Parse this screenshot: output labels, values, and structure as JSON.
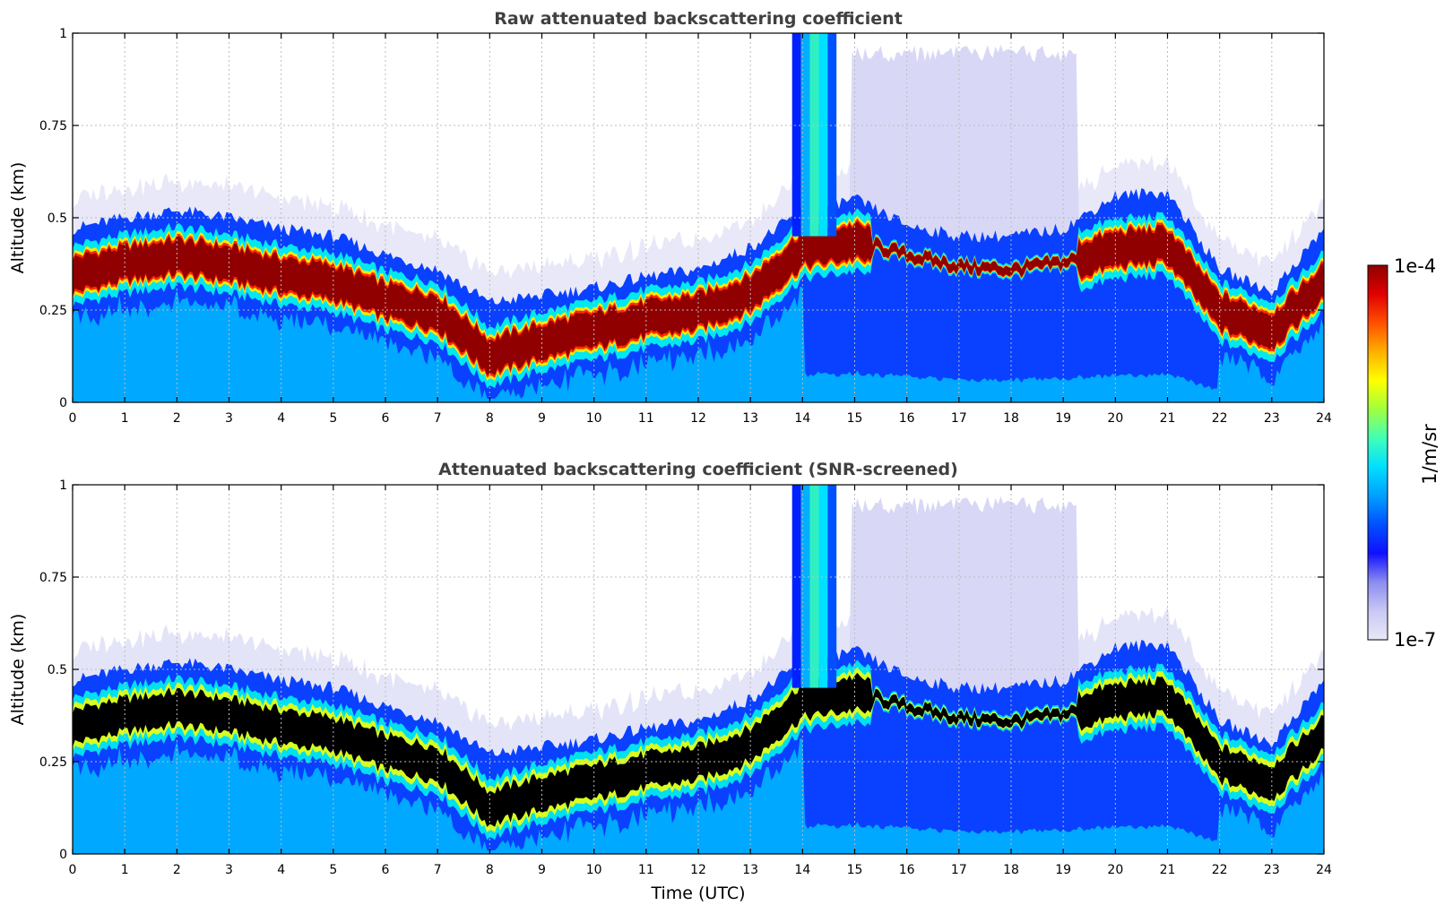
{
  "chart_data": [
    {
      "type": "heatmap",
      "title": "Raw attenuated backscattering coefficient",
      "xlabel": "",
      "ylabel": "Altitude (km)",
      "xlim": [
        0,
        24
      ],
      "ylim": [
        0,
        1
      ],
      "xticks": [
        "0",
        "1",
        "2",
        "3",
        "4",
        "5",
        "6",
        "7",
        "8",
        "9",
        "10",
        "11",
        "12",
        "13",
        "14",
        "15",
        "16",
        "17",
        "18",
        "19",
        "20",
        "21",
        "22",
        "23",
        "24"
      ],
      "yticks": [
        "0",
        "0.25",
        "0.5",
        "0.75",
        "1"
      ],
      "grid": true,
      "color_scale": "log",
      "layer_peak_altitude_km": {
        "x": [
          0,
          1,
          2,
          3,
          4,
          5,
          6,
          7,
          8,
          9,
          10,
          11,
          12,
          13,
          14,
          15,
          16,
          17,
          18,
          19,
          20,
          21,
          22,
          23,
          24
        ],
        "y": [
          0.35,
          0.38,
          0.4,
          0.38,
          0.35,
          0.33,
          0.28,
          0.25,
          0.13,
          0.17,
          0.2,
          0.23,
          0.25,
          0.3,
          0.42,
          0.44,
          0.4,
          0.37,
          0.36,
          0.38,
          0.42,
          0.43,
          0.25,
          0.2,
          0.33
        ]
      },
      "clear_air_top_km": {
        "x": [
          0,
          1,
          2,
          3,
          4,
          5,
          6,
          7,
          8,
          9,
          10,
          11,
          12,
          13,
          14,
          15,
          16,
          17,
          18,
          19,
          20,
          21,
          22,
          23,
          24
        ],
        "y": [
          0.47,
          0.5,
          0.52,
          0.5,
          0.47,
          0.45,
          0.4,
          0.36,
          0.27,
          0.29,
          0.31,
          0.34,
          0.36,
          0.42,
          0.52,
          0.55,
          0.48,
          0.45,
          0.45,
          0.47,
          0.56,
          0.57,
          0.36,
          0.3,
          0.47
        ]
      }
    },
    {
      "type": "heatmap",
      "title": "Attenuated backscattering coefficient (SNR-screened)",
      "xlabel": "Time (UTC)",
      "ylabel": "Altitude (km)",
      "xlim": [
        0,
        24
      ],
      "ylim": [
        0,
        1
      ],
      "xticks": [
        "0",
        "1",
        "2",
        "3",
        "4",
        "5",
        "6",
        "7",
        "8",
        "9",
        "10",
        "11",
        "12",
        "13",
        "14",
        "15",
        "16",
        "17",
        "18",
        "19",
        "20",
        "21",
        "22",
        "23",
        "24"
      ],
      "yticks": [
        "0",
        "0.25",
        "0.5",
        "0.75",
        "1"
      ],
      "grid": true,
      "color_scale": "log"
    }
  ],
  "colorbar": {
    "label": "1/m/sr",
    "max_label": "1e-4",
    "min_label": "1e-7",
    "vmin": 1e-07,
    "vmax": 0.0001,
    "scale": "log",
    "colormap": [
      "#e8e8f8",
      "#c8c8f4",
      "#8c8cf0",
      "#1010ff",
      "#0050ff",
      "#00a0ff",
      "#00e0ff",
      "#40ffb8",
      "#a0ff40",
      "#ffff00",
      "#ffb000",
      "#ff5000",
      "#e00000",
      "#900000"
    ]
  },
  "masked_color": "#000000"
}
